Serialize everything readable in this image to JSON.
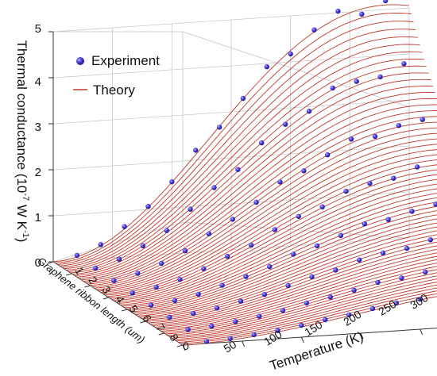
{
  "chart_data": {
    "type": "surface3d",
    "legend": {
      "position": "top-left",
      "items": [
        {
          "label": "Experiment",
          "marker": "sphere",
          "color": "#3a2fc4"
        },
        {
          "label": "Theory",
          "marker": "line",
          "color": "#c0392b"
        }
      ]
    },
    "z_axis": {
      "label_main": "Thermal conductance (10",
      "label_sup1": "-7",
      "label_mid": " W K",
      "label_sup2": "-1",
      "label_end": ")",
      "ticks": [
        "0",
        "1",
        "2",
        "3",
        "4",
        "5"
      ],
      "range": [
        0,
        5
      ]
    },
    "x_axis": {
      "label": "Temperature (K)",
      "ticks": [
        "0",
        "50",
        "100",
        "150",
        "200",
        "250",
        "300"
      ],
      "range": [
        0,
        300
      ]
    },
    "y_axis": {
      "label": "Graphene ribbon length (um)",
      "ticks": [
        "1",
        "2",
        "3",
        "4",
        "5",
        "6",
        "7",
        "8"
      ],
      "range": [
        1,
        8
      ]
    },
    "colors": {
      "theory": "#c0392b",
      "experiment": "#3a2fc4",
      "grid": "#c8c8c8",
      "axis": "#333333"
    },
    "surface_model": "G(T, L) = A(L) * (T/T_peak(L))^2 * exp(1 - (T/T_peak(L))^2), peak height decreasing with ribbon length",
    "peak_by_length": [
      {
        "length_um": 1,
        "peak_T_K": 280,
        "peak_G": 5.1
      },
      {
        "length_um": 8,
        "peak_T_K": 300,
        "peak_G": 0.8
      }
    ],
    "experiment_lengths_um": [
      1,
      2,
      3,
      4,
      5,
      6,
      7,
      8
    ],
    "experiment_temperatures_K": [
      20,
      40,
      60,
      80,
      100,
      120,
      140,
      160,
      180,
      200,
      220,
      240,
      260,
      280
    ]
  }
}
